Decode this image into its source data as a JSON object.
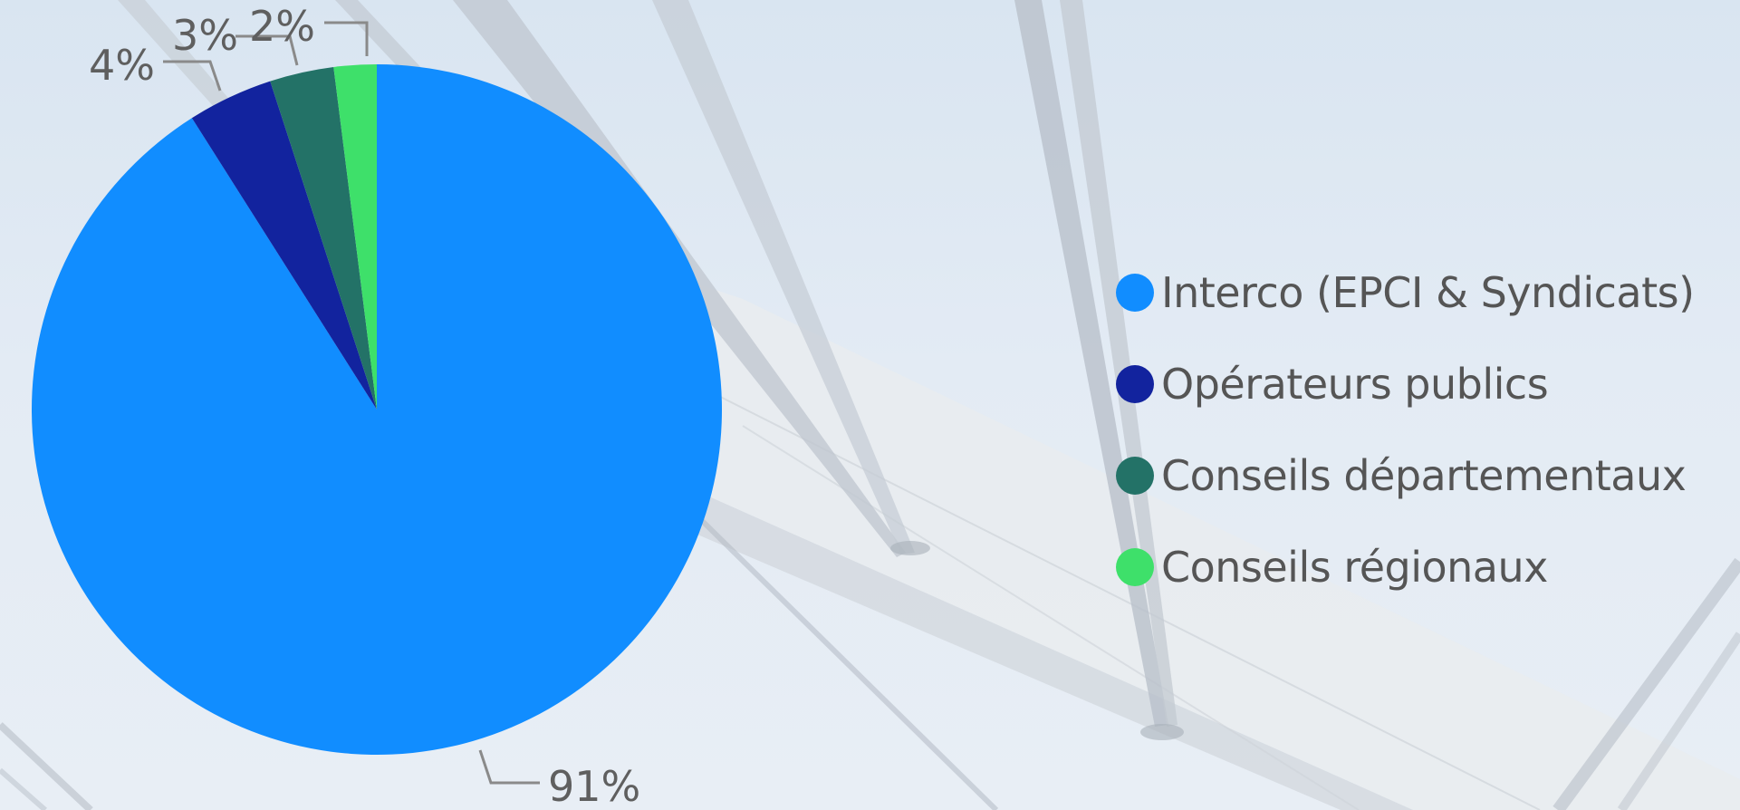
{
  "chart_data": {
    "type": "pie",
    "categories": [
      "Interco (EPCI & Syndicats)",
      "Opérateurs publics",
      "Conseils départementaux",
      "Conseils régionaux"
    ],
    "values": [
      91,
      4,
      3,
      2
    ],
    "labels": [
      "91%",
      "4%",
      "3%",
      "2%"
    ],
    "colors": [
      "#118dff",
      "#12239e",
      "#237267",
      "#3ee06a"
    ],
    "title": "",
    "legend_position": "right",
    "data_labels": "outside with leader lines"
  }
}
